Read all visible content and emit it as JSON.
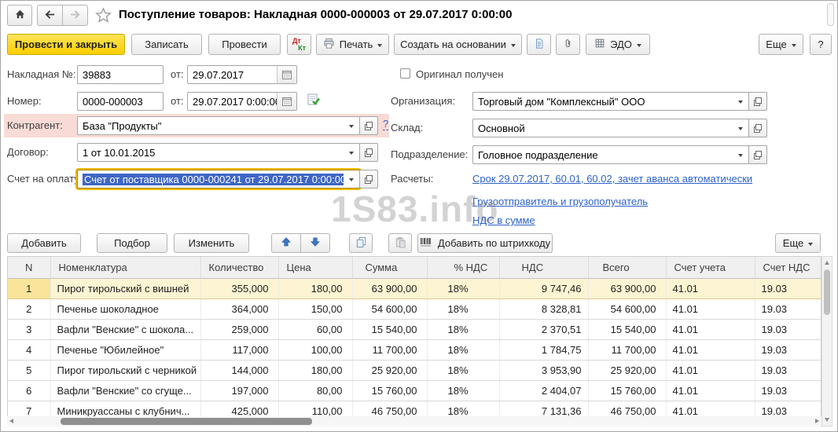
{
  "window": {
    "title": "Поступление товаров: Накладная 0000-000003 от 29.07.2017 0:00:00"
  },
  "toolbar": {
    "post_and_close": "Провести и закрыть",
    "write": "Записать",
    "post": "Провести",
    "dt": "Дт",
    "kt": "Кт",
    "print": "Печать",
    "create_based_on": "Создать на основании",
    "edo": "ЭДО",
    "more": "Еще",
    "help": "?"
  },
  "form": {
    "invoice_label": "Накладная №:",
    "invoice_number": "39883",
    "from_label_1": "от:",
    "invoice_date": "29.07.2017",
    "number_label": "Номер:",
    "number": "0000-000003",
    "from_label_2": "от:",
    "number_date": "29.07.2017 0:00:00",
    "counterparty_label": "Контрагент:",
    "counterparty": "База \"Продукты\"",
    "counterparty_help": "?",
    "contract_label": "Договор:",
    "contract": "1 от 10.01.2015",
    "payment_account_label": "Счет на оплату:",
    "payment_account": "Счет от поставщика 0000-000241 от 29.07.2017 0:00:00",
    "original_received_label": "Оригинал получен",
    "organization_label": "Организация:",
    "organization": "Торговый дом \"Комплексный\" ООО",
    "warehouse_label": "Склад:",
    "warehouse": "Основной",
    "department_label": "Подразделение:",
    "department": "Головное подразделение",
    "settlements_label": "Расчеты:",
    "settlements_link": "Срок 29.07.2017, 60.01, 60.02, зачет аванса автоматически",
    "shipper_link": "Грузоотправитель и грузополучатель",
    "vat_link": "НДС в сумме"
  },
  "table_toolbar": {
    "add": "Добавить",
    "pick": "Подбор",
    "edit": "Изменить",
    "add_by_barcode": "Добавить по штрихкоду",
    "more": "Еще"
  },
  "table": {
    "columns": [
      "N",
      "Номенклатура",
      "Количество",
      "Цена",
      "Сумма",
      "% НДС",
      "НДС",
      "Всего",
      "Счет учета",
      "Счет НДС"
    ],
    "column_keys": [
      "n",
      "nomenclature",
      "quantity",
      "price",
      "sum",
      "vat_percent",
      "vat",
      "total",
      "account",
      "vat_account"
    ],
    "selected_row": 0,
    "rows": [
      [
        "1",
        "Пирог тирольский с вишней",
        "355,000",
        "180,00",
        "63 900,00",
        "18%",
        "9 747,46",
        "63 900,00",
        "41.01",
        "19.03"
      ],
      [
        "2",
        "Печенье шоколадное",
        "364,000",
        "150,00",
        "54 600,00",
        "18%",
        "8 328,81",
        "54 600,00",
        "41.01",
        "19.03"
      ],
      [
        "3",
        "Вафли \"Венские\" с шокола...",
        "259,000",
        "60,00",
        "15 540,00",
        "18%",
        "2 370,51",
        "15 540,00",
        "41.01",
        "19.03"
      ],
      [
        "4",
        "Печенье \"Юбилейное\"",
        "117,000",
        "100,00",
        "11 700,00",
        "18%",
        "1 784,75",
        "11 700,00",
        "41.01",
        "19.03"
      ],
      [
        "5",
        "Пирог тирольский с черникой",
        "144,000",
        "180,00",
        "25 920,00",
        "18%",
        "3 953,90",
        "25 920,00",
        "41.01",
        "19.03"
      ],
      [
        "6",
        "Вафли \"Венские\" со сгуще...",
        "197,000",
        "80,00",
        "15 760,00",
        "18%",
        "2 404,07",
        "15 760,00",
        "41.01",
        "19.03"
      ],
      [
        "7",
        "Миникруассаны с клубнич...",
        "425,000",
        "110,00",
        "46 750,00",
        "18%",
        "7 131,36",
        "46 750,00",
        "41.01",
        "19.03"
      ]
    ]
  },
  "watermark": "1S83.info",
  "colors": {
    "accent_yellow": "#fbce00",
    "selection_blue": "#3f66c5",
    "link_blue": "#2d62c9",
    "required_pink": "#f8dbd6",
    "row_highlight": "#fcf4d2"
  }
}
